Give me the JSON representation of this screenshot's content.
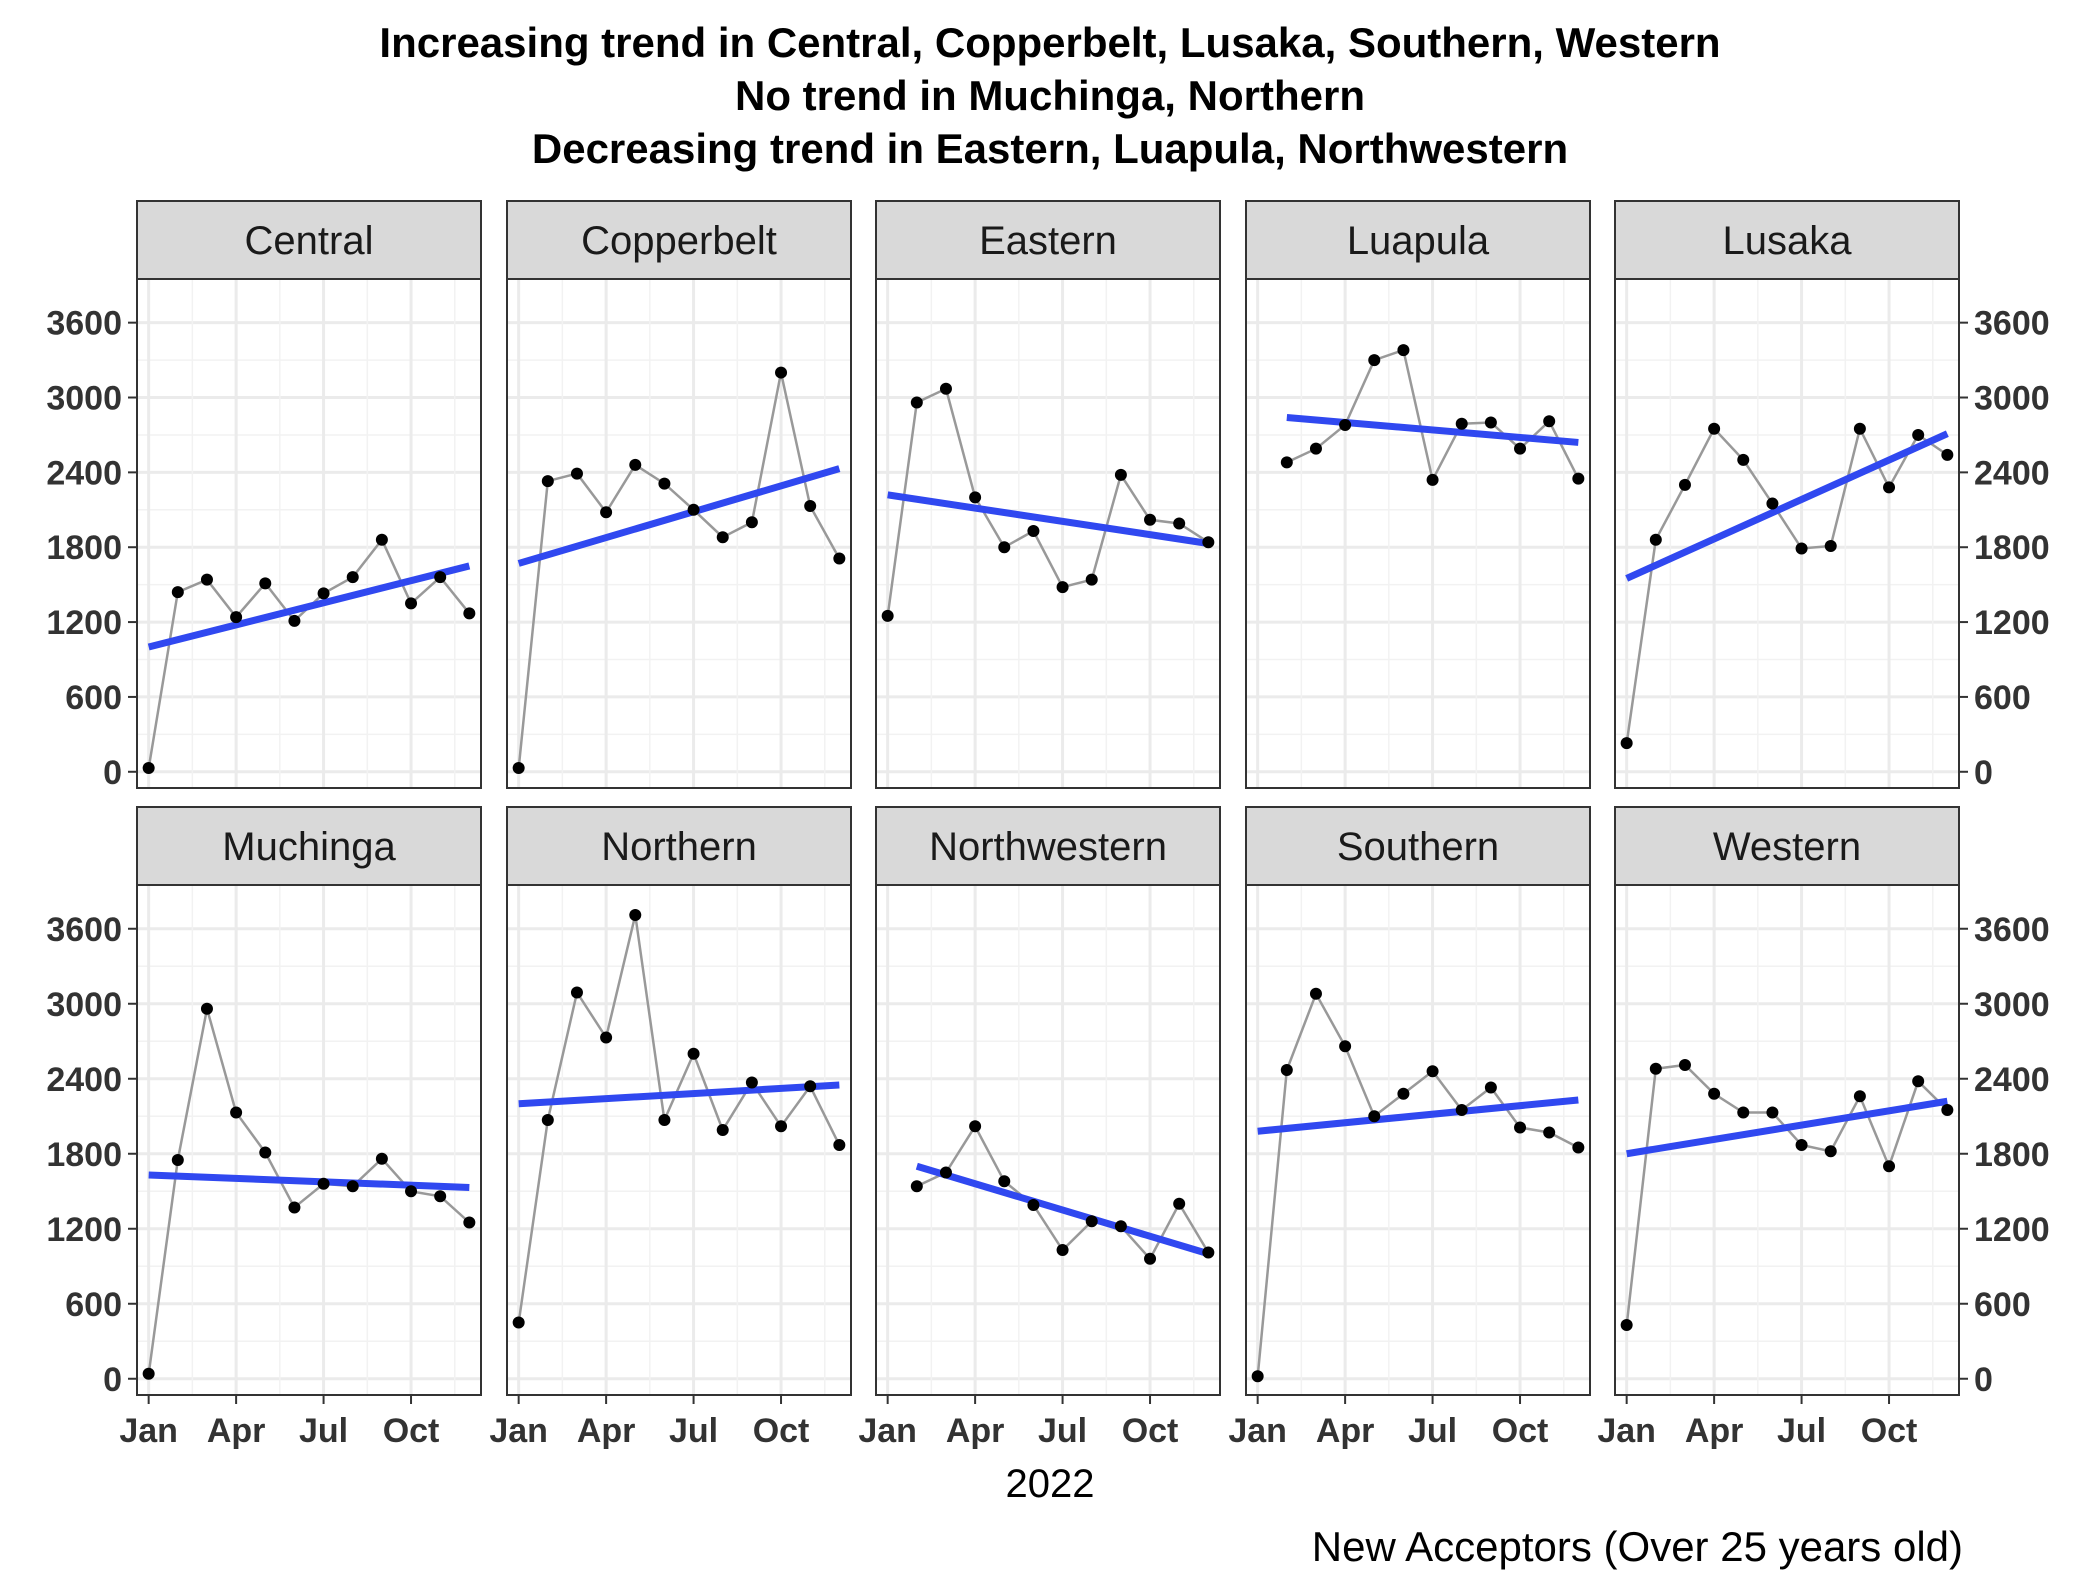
{
  "chart_data": {
    "type": "line",
    "title_lines": [
      "Increasing trend in Central, Copperbelt, Lusaka, Southern, Western",
      "No trend in Muchinga, Northern",
      "Decreasing trend in Eastern, Luapula, Northwestern"
    ],
    "xlabel": "2022",
    "caption": "New Acceptors (Over 25 years old)",
    "x_ticks": [
      "Jan",
      "Apr",
      "Jul",
      "Oct"
    ],
    "y_ticks": [
      0,
      600,
      1200,
      1800,
      2400,
      3000,
      3600
    ],
    "ylim": [
      -130,
      3950
    ],
    "grid": true,
    "colors": {
      "observed_line": "#999999",
      "point": "#000000",
      "trend": "#3048F0",
      "strip": "#D9D9D9"
    },
    "panels": [
      {
        "name": "Central",
        "x": [
          1,
          2,
          3,
          4,
          5,
          6,
          7,
          8,
          9,
          10,
          11,
          12
        ],
        "values": [
          30,
          1440,
          1540,
          1240,
          1510,
          1210,
          1430,
          1560,
          1860,
          1350,
          1560,
          1270
        ],
        "trend": [
          1000,
          1650
        ]
      },
      {
        "name": "Copperbelt",
        "x": [
          1,
          2,
          3,
          4,
          5,
          6,
          7,
          8,
          9,
          10,
          11,
          12
        ],
        "values": [
          30,
          2330,
          2390,
          2080,
          2460,
          2310,
          2100,
          1880,
          2000,
          3200,
          2130,
          1710
        ],
        "trend": [
          1670,
          2430
        ]
      },
      {
        "name": "Eastern",
        "x": [
          1,
          2,
          3,
          4,
          5,
          6,
          7,
          8,
          9,
          10,
          11,
          12
        ],
        "values": [
          1250,
          2960,
          3070,
          2200,
          1800,
          1930,
          1480,
          1540,
          2380,
          2020,
          1990,
          1840
        ],
        "trend": [
          2220,
          1830
        ]
      },
      {
        "name": "Luapula",
        "x": [
          2,
          3,
          4,
          5,
          6,
          7,
          8,
          9,
          10,
          11,
          12
        ],
        "values": [
          2480,
          2590,
          2780,
          3300,
          3380,
          2340,
          2790,
          2800,
          2590,
          2810,
          2350
        ],
        "trend": [
          2840,
          2640
        ]
      },
      {
        "name": "Lusaka",
        "x": [
          1,
          2,
          3,
          4,
          5,
          6,
          7,
          8,
          9,
          10,
          11,
          12
        ],
        "values": [
          230,
          1860,
          2300,
          2750,
          2500,
          2150,
          1790,
          1810,
          2750,
          2280,
          2700,
          2540
        ],
        "trend": [
          1550,
          2710
        ]
      },
      {
        "name": "Muchinga",
        "x": [
          1,
          2,
          3,
          4,
          5,
          6,
          7,
          8,
          9,
          10,
          11,
          12
        ],
        "values": [
          40,
          1750,
          2960,
          2130,
          1810,
          1370,
          1560,
          1540,
          1760,
          1500,
          1460,
          1250
        ],
        "trend": [
          1630,
          1530
        ]
      },
      {
        "name": "Northern",
        "x": [
          1,
          2,
          3,
          4,
          5,
          6,
          7,
          8,
          9,
          10,
          11,
          12
        ],
        "values": [
          450,
          2070,
          3090,
          2730,
          3710,
          2070,
          2600,
          1990,
          2370,
          2020,
          2340,
          1870
        ],
        "trend": [
          2200,
          2350
        ]
      },
      {
        "name": "Northwestern",
        "x": [
          2,
          3,
          4,
          5,
          6,
          7,
          8,
          9,
          10,
          11,
          12
        ],
        "values": [
          1540,
          1650,
          2020,
          1580,
          1390,
          1030,
          1260,
          1220,
          960,
          1400,
          1010
        ],
        "trend": [
          1700,
          1000
        ]
      },
      {
        "name": "Southern",
        "x": [
          1,
          2,
          3,
          4,
          5,
          6,
          7,
          8,
          9,
          10,
          11,
          12
        ],
        "values": [
          20,
          2470,
          3080,
          2660,
          2100,
          2280,
          2460,
          2150,
          2330,
          2010,
          1970,
          1850
        ],
        "trend": [
          1980,
          2230
        ]
      },
      {
        "name": "Western",
        "x": [
          1,
          2,
          3,
          4,
          5,
          6,
          7,
          8,
          9,
          10,
          11,
          12
        ],
        "values": [
          430,
          2480,
          2510,
          2280,
          2130,
          2130,
          1870,
          1820,
          2260,
          1700,
          2380,
          2150
        ],
        "trend": [
          1800,
          2220
        ]
      }
    ]
  }
}
